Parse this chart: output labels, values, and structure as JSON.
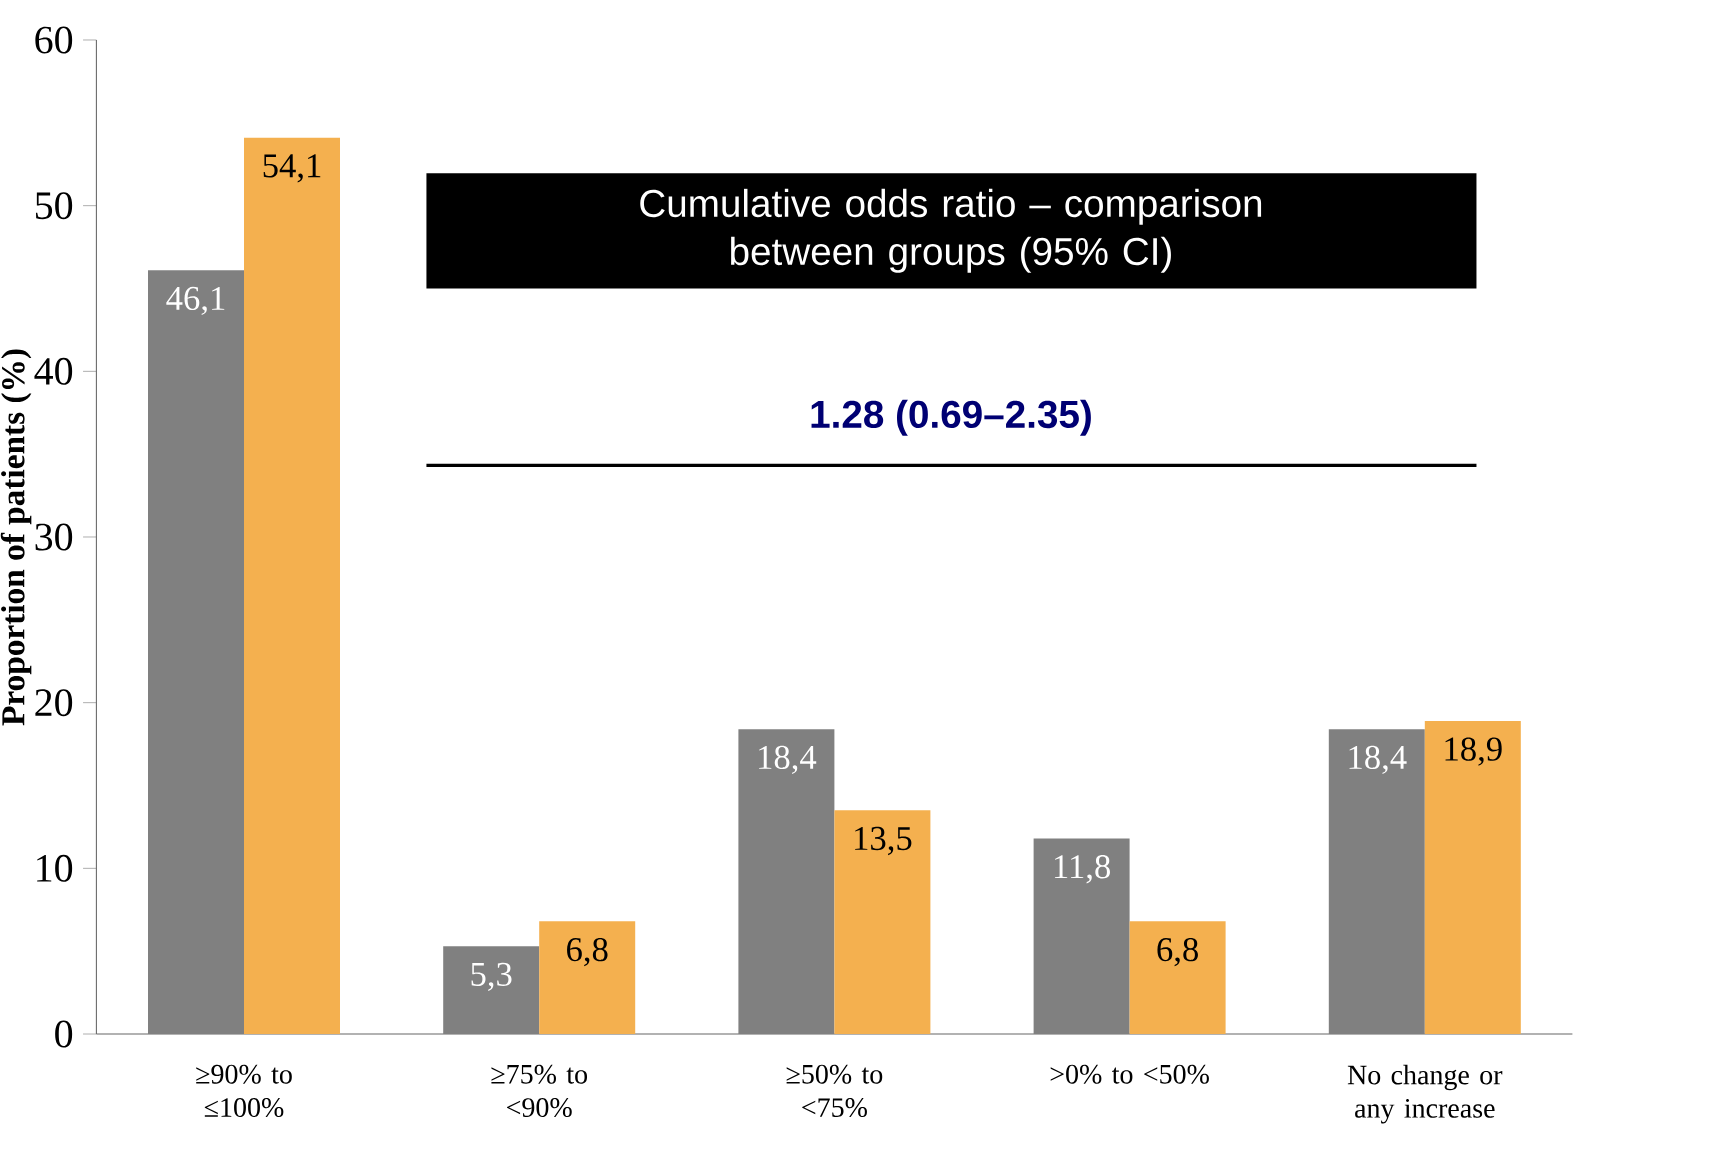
{
  "chart_data": {
    "type": "bar",
    "ylabel": "Proportion of patients (%)",
    "categories": [
      "≥90% to ≤100%",
      "≥75% to <90%",
      "≥50% to <75%",
      ">0% to <50%",
      "No change or any increase"
    ],
    "series": [
      {
        "color": "#808080",
        "values": [
          46.1,
          5.3,
          18.4,
          11.8,
          18.4
        ],
        "value_labels": [
          "46,1",
          "5,3",
          "18,4",
          "11,8",
          "18,4"
        ]
      },
      {
        "color": "#f4b04f",
        "values": [
          54.1,
          6.8,
          13.5,
          6.8,
          18.9
        ],
        "value_labels": [
          "54,1",
          "6,8",
          "13,5",
          "6,8",
          "18,9"
        ]
      }
    ],
    "ylim": [
      0,
      60
    ],
    "yticks": [
      0,
      10,
      20,
      30,
      40,
      50,
      60
    ],
    "grid": false,
    "annotations": [
      "Cumulative odds ratio – comparison between groups (95% CI)",
      "1.28 (0.69–2.35)"
    ]
  }
}
